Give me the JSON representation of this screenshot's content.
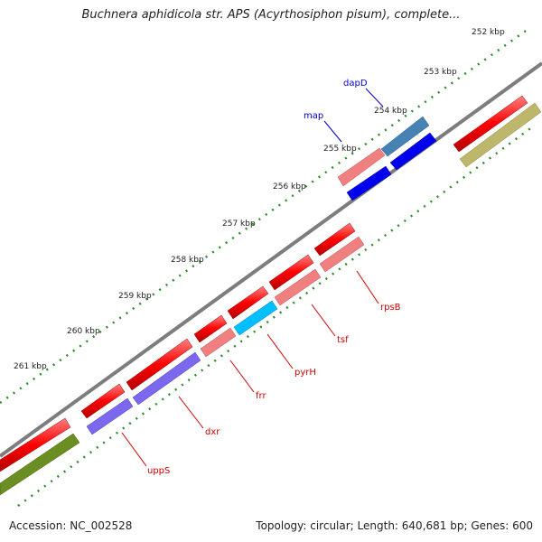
{
  "title": "Buchnera aphidicola str. APS (Acyrthosiphon pisum), complete...",
  "footer": {
    "accession": "Accession: NC_002528",
    "summary": "Topology: circular; Length: 640,681 bp; Genes: 600"
  },
  "ticks": [
    "252 kbp",
    "253 kbp",
    "254 kbp",
    "255 kbp",
    "256 kbp",
    "257 kbp",
    "258 kbp",
    "259 kbp",
    "260 kbp",
    "261 kbp"
  ],
  "genes": [
    {
      "label": "dapD",
      "color": "#0000cc"
    },
    {
      "label": "map",
      "color": "#0000cc"
    },
    {
      "label": "rpsB",
      "color": "#cc0000"
    },
    {
      "label": "tsf",
      "color": "#cc0000"
    },
    {
      "label": "pyrH",
      "color": "#cc0000"
    },
    {
      "label": "frr",
      "color": "#cc0000"
    },
    {
      "label": "dxr",
      "color": "#cc0000"
    },
    {
      "label": "uppS",
      "color": "#cc0000"
    }
  ],
  "colors": {
    "backbone": "#808080",
    "cds_red": "#ff1a1a",
    "pink": "#f08080",
    "blue": "#0000ee",
    "steelblue": "#4682b4",
    "cyan": "#00bfff",
    "purple": "#7b68ee",
    "olive": "#6b8e23",
    "khaki": "#bdb76b",
    "tick": "#2e8b2e"
  }
}
